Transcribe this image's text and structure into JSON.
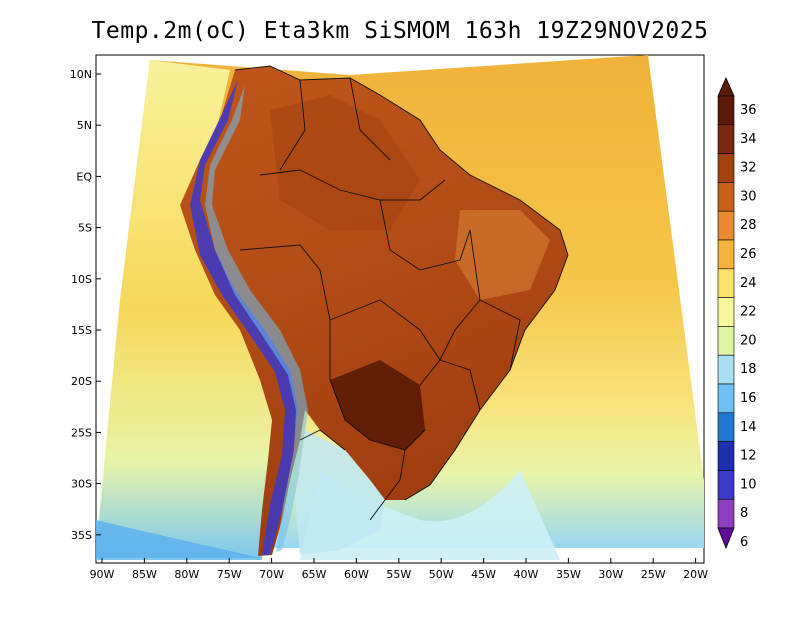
{
  "title": "Temp.2m(oC) Eta3km SiSMOM 163h 19Z29NOV2025",
  "map": {
    "lat_labels": [
      "10N",
      "5N",
      "EQ",
      "5S",
      "10S",
      "15S",
      "20S",
      "25S",
      "30S",
      "35S"
    ],
    "lon_labels": [
      "90W",
      "85W",
      "80W",
      "75W",
      "70W",
      "65W",
      "60W",
      "55W",
      "50W",
      "45W",
      "40W",
      "35W",
      "30W",
      "25W",
      "20W"
    ],
    "lat_range": [
      -38,
      11
    ],
    "lon_range": [
      -91,
      -20
    ]
  },
  "colorbar": {
    "labels": [
      "36",
      "34",
      "32",
      "30",
      "28",
      "26",
      "24",
      "22",
      "20",
      "18",
      "16",
      "14",
      "12",
      "10",
      "8",
      "6"
    ],
    "colors": [
      "#5a1a06",
      "#7a2a0c",
      "#a3420f",
      "#c9601a",
      "#e98a2e",
      "#f6b33c",
      "#fbe06a",
      "#f8f79e",
      "#dff5a0",
      "#a7e0f5",
      "#6ec0f0",
      "#1f78d0",
      "#1c2fb0",
      "#3a3acc",
      "#8e40c0",
      "#620b98"
    ]
  }
}
